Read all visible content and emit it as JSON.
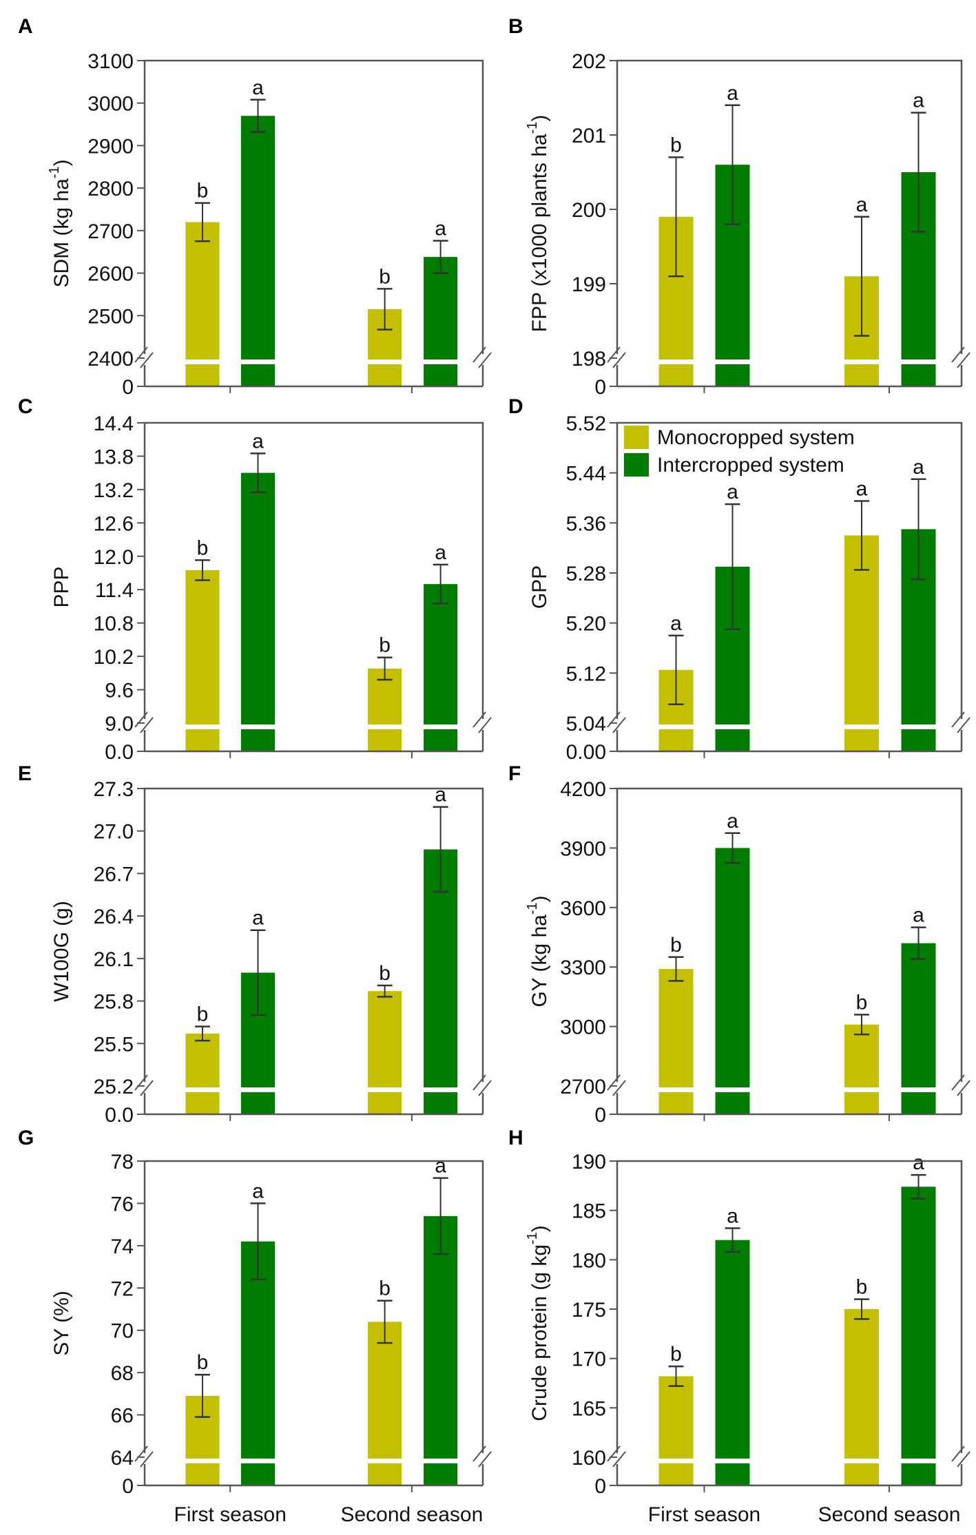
{
  "colors": {
    "monocropped": "#c2c000",
    "intercropped": "#007c00",
    "axis": "#555555",
    "errorbar": "#333333"
  },
  "legend": {
    "panel": "D",
    "items": [
      "Monocropped system",
      "Intercropped system"
    ]
  },
  "x_categories": [
    "First season",
    "Second season"
  ],
  "chart_data": [
    {
      "type": "bar",
      "panel": "A",
      "ylabel": {
        "main": "SDM (kg ha",
        "sup": "-1",
        "tail": ")"
      },
      "ylim": [
        2400,
        3100
      ],
      "yticks": [
        "2400",
        "2500",
        "2600",
        "2700",
        "2800",
        "2900",
        "3000",
        "3100"
      ],
      "zero_label": "0",
      "axis_break": true,
      "categories": [
        "First season",
        "Second season"
      ],
      "series": [
        {
          "name": "Monocropped system",
          "values": [
            2720,
            2515
          ],
          "errors": [
            45,
            48
          ],
          "letters": [
            "b",
            "b"
          ]
        },
        {
          "name": "Intercropped system",
          "values": [
            2970,
            2638
          ],
          "errors": [
            38,
            38
          ],
          "letters": [
            "a",
            "a"
          ]
        }
      ]
    },
    {
      "type": "bar",
      "panel": "B",
      "ylabel": {
        "main": "FPP (x1000 plants ha",
        "sup": "-1",
        "tail": ")"
      },
      "ylim": [
        198,
        202
      ],
      "yticks": [
        "198",
        "199",
        "200",
        "201",
        "202"
      ],
      "zero_label": "0",
      "axis_break": true,
      "categories": [
        "First season",
        "Second season"
      ],
      "series": [
        {
          "name": "Monocropped system",
          "values": [
            199.9,
            199.1
          ],
          "errors": [
            0.8,
            0.8
          ],
          "letters": [
            "b",
            "a"
          ]
        },
        {
          "name": "Intercropped system",
          "values": [
            200.6,
            200.5
          ],
          "errors": [
            0.8,
            0.8
          ],
          "letters": [
            "a",
            "a"
          ]
        }
      ]
    },
    {
      "type": "bar",
      "panel": "C",
      "ylabel": {
        "main": "PPP",
        "sup": "",
        "tail": ""
      },
      "ylim": [
        9.0,
        14.4
      ],
      "yticks": [
        "9.0",
        "9.6",
        "10.2",
        "10.8",
        "11.4",
        "12.0",
        "12.6",
        "13.2",
        "13.8",
        "14.4"
      ],
      "zero_label": "0.0",
      "axis_break": true,
      "categories": [
        "First season",
        "Second season"
      ],
      "series": [
        {
          "name": "Monocropped system",
          "values": [
            11.75,
            9.98
          ],
          "errors": [
            0.18,
            0.2
          ],
          "letters": [
            "b",
            "b"
          ]
        },
        {
          "name": "Intercropped system",
          "values": [
            13.5,
            11.5
          ],
          "errors": [
            0.35,
            0.35
          ],
          "letters": [
            "a",
            "a"
          ]
        }
      ]
    },
    {
      "type": "bar",
      "panel": "D",
      "ylabel": {
        "main": "GPP",
        "sup": "",
        "tail": ""
      },
      "ylim": [
        5.04,
        5.52
      ],
      "yticks": [
        "5.04",
        "5.12",
        "5.20",
        "5.28",
        "5.36",
        "5.44",
        "5.52"
      ],
      "zero_label": "0.00",
      "axis_break": true,
      "categories": [
        "First season",
        "Second season"
      ],
      "series": [
        {
          "name": "Monocropped system",
          "values": [
            5.125,
            5.34
          ],
          "errors": [
            0.055,
            0.055
          ],
          "letters": [
            "a",
            "a"
          ]
        },
        {
          "name": "Intercropped system",
          "values": [
            5.29,
            5.35
          ],
          "errors": [
            0.1,
            0.08
          ],
          "letters": [
            "a",
            "a"
          ]
        }
      ]
    },
    {
      "type": "bar",
      "panel": "E",
      "ylabel": {
        "main": "W100G (g)",
        "sup": "",
        "tail": ""
      },
      "ylim": [
        25.2,
        27.3
      ],
      "yticks": [
        "25.2",
        "25.5",
        "25.8",
        "26.1",
        "26.4",
        "26.7",
        "27.0",
        "27.3"
      ],
      "zero_label": "0.0",
      "axis_break": true,
      "categories": [
        "First season",
        "Second season"
      ],
      "series": [
        {
          "name": "Monocropped system",
          "values": [
            25.57,
            25.87
          ],
          "errors": [
            0.05,
            0.04
          ],
          "letters": [
            "b",
            "b"
          ]
        },
        {
          "name": "Intercropped system",
          "values": [
            26.0,
            26.87
          ],
          "errors": [
            0.3,
            0.3
          ],
          "letters": [
            "a",
            "a"
          ]
        }
      ]
    },
    {
      "type": "bar",
      "panel": "F",
      "ylabel": {
        "main": "GY (kg ha",
        "sup": "-1",
        "tail": ")"
      },
      "ylim": [
        2700,
        4200
      ],
      "yticks": [
        "2700",
        "3000",
        "3300",
        "3600",
        "3900",
        "4200"
      ],
      "zero_label": "0",
      "axis_break": true,
      "categories": [
        "First season",
        "Second season"
      ],
      "series": [
        {
          "name": "Monocropped system",
          "values": [
            3290,
            3010
          ],
          "errors": [
            60,
            50
          ],
          "letters": [
            "b",
            "b"
          ]
        },
        {
          "name": "Intercropped system",
          "values": [
            3900,
            3420
          ],
          "errors": [
            75,
            80
          ],
          "letters": [
            "a",
            "a"
          ]
        }
      ]
    },
    {
      "type": "bar",
      "panel": "G",
      "ylabel": {
        "main": "SY (%)",
        "sup": "",
        "tail": ""
      },
      "ylim": [
        64,
        78
      ],
      "yticks": [
        "64",
        "66",
        "68",
        "70",
        "72",
        "74",
        "76",
        "78"
      ],
      "zero_label": "0",
      "axis_break": true,
      "categories": [
        "First season",
        "Second season"
      ],
      "series": [
        {
          "name": "Monocropped system",
          "values": [
            66.9,
            70.4
          ],
          "errors": [
            1.0,
            1.0
          ],
          "letters": [
            "b",
            "b"
          ]
        },
        {
          "name": "Intercropped system",
          "values": [
            74.2,
            75.4
          ],
          "errors": [
            1.8,
            1.8
          ],
          "letters": [
            "a",
            "a"
          ]
        }
      ]
    },
    {
      "type": "bar",
      "panel": "H",
      "ylabel": {
        "main": "Crude protein (g kg",
        "sup": "-1",
        "tail": ")"
      },
      "ylim": [
        160,
        190
      ],
      "yticks": [
        "160",
        "165",
        "170",
        "175",
        "180",
        "185",
        "190"
      ],
      "zero_label": "0",
      "axis_break": true,
      "categories": [
        "First season",
        "Second season"
      ],
      "series": [
        {
          "name": "Monocropped system",
          "values": [
            168.2,
            175.0
          ],
          "errors": [
            1.0,
            1.0
          ],
          "letters": [
            "b",
            "b"
          ]
        },
        {
          "name": "Intercropped system",
          "values": [
            182.0,
            187.4
          ],
          "errors": [
            1.2,
            1.2
          ],
          "letters": [
            "a",
            "a"
          ]
        }
      ]
    }
  ]
}
